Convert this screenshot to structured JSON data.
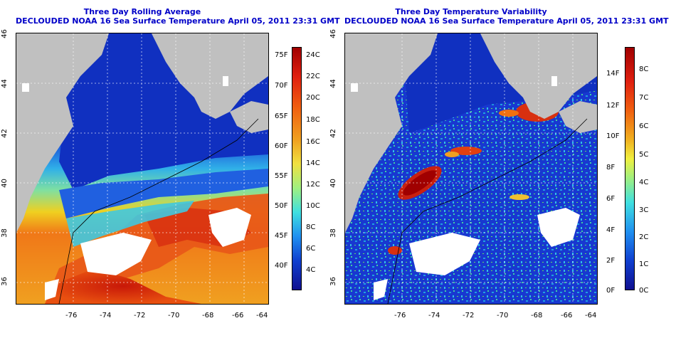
{
  "left_panel": {
    "title_line1": "Three Day Rolling Average",
    "title_line2": "DECLOUDED NOAA 16 Sea Surface Temperature April 05, 2011 23:31 GMT",
    "x_ticks": [
      "-76",
      "-74",
      "-72",
      "-70",
      "-68",
      "-66",
      "-64"
    ],
    "y_ticks": [
      "46",
      "44",
      "42",
      "40",
      "38",
      "36"
    ],
    "colorbar_f_labels": [
      "75F",
      "70F",
      "65F",
      "60F",
      "55F",
      "50F",
      "45F",
      "40F"
    ],
    "colorbar_c_labels": [
      "24C",
      "22C",
      "20C",
      "18C",
      "16C",
      "14C",
      "12C",
      "10C",
      "8C",
      "6C",
      "4C"
    ]
  },
  "right_panel": {
    "title_line1": "Three Day Temperature Variability",
    "title_line2": "DECLOUDED NOAA 16 Sea Surface Temperature April 05, 2011 23:31 GMT",
    "x_ticks": [
      "-76",
      "-74",
      "-72",
      "-70",
      "-68",
      "-66",
      "-64"
    ],
    "y_ticks": [
      "46",
      "44",
      "42",
      "40",
      "38",
      "36"
    ],
    "colorbar_f_labels": [
      "14F",
      "12F",
      "10F",
      "8F",
      "6F",
      "4F",
      "2F",
      "0F"
    ],
    "colorbar_c_labels": [
      "8C",
      "7C",
      "6C",
      "5C",
      "4C",
      "3C",
      "2C",
      "1C",
      "0C"
    ]
  },
  "colors": {
    "title": "#0000c8",
    "land": "#c0c0c0",
    "cold": "#1030c0",
    "warm": "#d83010"
  }
}
